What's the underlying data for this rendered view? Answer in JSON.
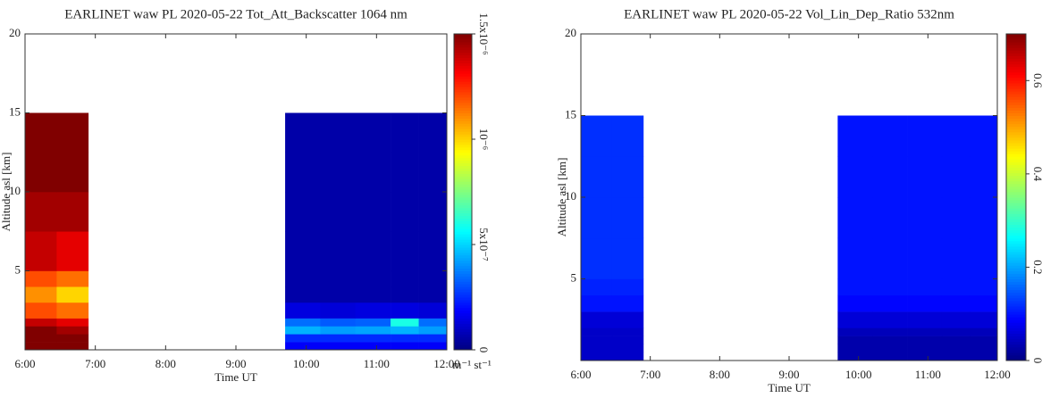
{
  "chart_data": [
    {
      "type": "heatmap",
      "title": "EARLINET waw PL 2020-05-22 Tot_Att_Backscatter 1064 nm",
      "xlabel": "Time UT",
      "ylabel": "Altitude asl [km]",
      "xlim": [
        6,
        12
      ],
      "xticks": [
        {
          "value": 6,
          "label": "6:00"
        },
        {
          "value": 7,
          "label": "7:00"
        },
        {
          "value": 8,
          "label": "8:00"
        },
        {
          "value": 9,
          "label": "9:00"
        },
        {
          "value": 10,
          "label": "10:00"
        },
        {
          "value": 11,
          "label": "11:00"
        },
        {
          "value": 12,
          "label": "12:00"
        }
      ],
      "ylim": [
        0,
        20
      ],
      "yticks": [
        5,
        10,
        15,
        20
      ],
      "x_edges": [
        6,
        6.45,
        6.9,
        9.7,
        10.2,
        10.7,
        11.2,
        11.6,
        12
      ],
      "y_edges": [
        0,
        0.5,
        1,
        1.5,
        2,
        3,
        4,
        5,
        7.5,
        10,
        12.5,
        15
      ],
      "z": [
        [
          1.5e-06,
          1.5e-06,
          null,
          1.8e-07,
          1.8e-07,
          1.8e-07,
          1.8e-07,
          1.8e-07
        ],
        [
          1.5e-06,
          1.5e-06,
          null,
          2.5e-07,
          2.5e-07,
          2.5e-07,
          2.5e-07,
          2.5e-07
        ],
        [
          1.5e-06,
          1.45e-06,
          null,
          4.5e-07,
          4.2e-07,
          4.3e-07,
          4.5e-07,
          4.2e-07
        ],
        [
          1.4e-06,
          1.35e-06,
          null,
          3.5e-07,
          3.2e-07,
          3.3e-07,
          6e-07,
          3.5e-07
        ],
        [
          1.2e-06,
          1.15e-06,
          null,
          1.4e-07,
          1.3e-07,
          1.4e-07,
          1.4e-07,
          1.3e-07
        ],
        [
          1.1e-06,
          1e-06,
          null,
          6e-08,
          6e-08,
          6e-08,
          6e-08,
          6e-08
        ],
        [
          1.2e-06,
          1.15e-06,
          null,
          6e-08,
          6e-08,
          6e-08,
          6e-08,
          6e-08
        ],
        [
          1.4e-06,
          1.35e-06,
          null,
          6e-08,
          6e-08,
          6e-08,
          6e-08,
          6e-08
        ],
        [
          1.45e-06,
          1.45e-06,
          null,
          6e-08,
          6e-08,
          6e-08,
          6e-08,
          6e-08
        ],
        [
          1.5e-06,
          1.5e-06,
          null,
          6e-08,
          6e-08,
          6e-08,
          6e-08,
          6e-08
        ],
        [
          1.5e-06,
          1.5e-06,
          null,
          6e-08,
          6e-08,
          6e-08,
          6e-08,
          6e-08
        ]
      ],
      "colormap": "jet",
      "clim": [
        0,
        1.5e-06
      ],
      "cticks": [
        0,
        {
          "value": 5e-07,
          "label": "5x10⁻⁷"
        },
        {
          "value": 1e-06,
          "label": "10⁻⁶"
        },
        {
          "value": 1.5e-06,
          "label": "1.5x10⁻⁶"
        }
      ],
      "clabel": "m⁻¹ st⁻¹"
    },
    {
      "type": "heatmap",
      "title": "EARLINET waw PL 2020-05-22 Vol_Lin_Dep_Ratio 532nm",
      "xlabel": "Time UT",
      "ylabel": "Altitude asl [km]",
      "xlim": [
        6,
        12
      ],
      "xticks": [
        {
          "value": 6,
          "label": "6:00"
        },
        {
          "value": 7,
          "label": "7:00"
        },
        {
          "value": 8,
          "label": "8:00"
        },
        {
          "value": 9,
          "label": "9:00"
        },
        {
          "value": 10,
          "label": "10:00"
        },
        {
          "value": 11,
          "label": "11:00"
        },
        {
          "value": 12,
          "label": "12:00"
        }
      ],
      "ylim": [
        0,
        20
      ],
      "yticks": [
        5,
        10,
        15,
        20
      ],
      "x_edges": [
        6,
        6.45,
        6.9,
        9.7,
        10.2,
        10.7,
        11.2,
        11.6,
        12
      ],
      "y_edges": [
        0,
        0.5,
        1,
        1.5,
        2,
        3,
        4,
        5,
        7.5,
        10,
        12.5,
        15
      ],
      "z": [
        [
          0.05,
          0.05,
          null,
          0.03,
          0.03,
          0.03,
          0.03,
          0.03
        ],
        [
          0.05,
          0.05,
          null,
          0.03,
          0.03,
          0.03,
          0.03,
          0.03
        ],
        [
          0.05,
          0.05,
          null,
          0.03,
          0.03,
          0.03,
          0.03,
          0.03
        ],
        [
          0.05,
          0.05,
          null,
          0.04,
          0.04,
          0.04,
          0.04,
          0.04
        ],
        [
          0.06,
          0.06,
          null,
          0.06,
          0.06,
          0.06,
          0.06,
          0.06
        ],
        [
          0.1,
          0.1,
          null,
          0.09,
          0.09,
          0.09,
          0.09,
          0.09
        ],
        [
          0.11,
          0.11,
          null,
          0.1,
          0.1,
          0.1,
          0.1,
          0.1
        ],
        [
          0.12,
          0.12,
          null,
          0.1,
          0.1,
          0.1,
          0.1,
          0.1
        ],
        [
          0.12,
          0.12,
          null,
          0.1,
          0.1,
          0.1,
          0.1,
          0.1
        ],
        [
          0.12,
          0.12,
          null,
          0.1,
          0.1,
          0.1,
          0.1,
          0.1
        ],
        [
          0.12,
          0.12,
          null,
          0.1,
          0.1,
          0.1,
          0.1,
          0.1
        ]
      ],
      "colormap": "jet",
      "clim": [
        0,
        0.7
      ],
      "cticks": [
        0,
        0.2,
        0.4,
        0.6
      ]
    }
  ]
}
